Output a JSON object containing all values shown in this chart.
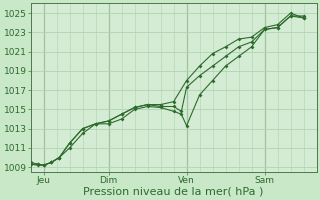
{
  "title": "",
  "xlabel": "Pression niveau de la mer( hPa )",
  "bg_color": "#c8e8c8",
  "plot_bg_color": "#d4ecd4",
  "grid_color": "#b0d4b0",
  "line_color": "#2d6a2d",
  "marker_color": "#2d6a2d",
  "ylim": [
    1008.5,
    1026.0
  ],
  "yticks": [
    1009,
    1011,
    1013,
    1015,
    1017,
    1019,
    1021,
    1023,
    1025
  ],
  "xtick_labels": [
    "Jeu",
    "Dim",
    "Ven",
    "Sam"
  ],
  "xtick_positions": [
    0.5,
    3.0,
    6.0,
    9.0
  ],
  "xlim": [
    0,
    11.0
  ],
  "series1_x": [
    0.0,
    0.3,
    0.5,
    0.8,
    1.1,
    1.5,
    2.0,
    2.5,
    3.0,
    3.5,
    4.0,
    4.5,
    5.0,
    5.5,
    5.8,
    6.0,
    6.5,
    7.0,
    7.5,
    8.0,
    8.5,
    9.0,
    9.5,
    10.0,
    10.5
  ],
  "series1_y": [
    1009.5,
    1009.3,
    1009.2,
    1009.5,
    1010.0,
    1011.0,
    1012.5,
    1013.5,
    1013.5,
    1014.0,
    1015.0,
    1015.3,
    1015.2,
    1014.8,
    1014.5,
    1013.3,
    1016.5,
    1018.0,
    1019.5,
    1020.5,
    1021.5,
    1023.3,
    1023.5,
    1024.7,
    1024.7
  ],
  "series2_x": [
    0.0,
    0.3,
    0.5,
    0.8,
    1.1,
    1.5,
    2.0,
    2.5,
    3.0,
    3.5,
    4.0,
    4.5,
    5.0,
    5.5,
    5.8,
    6.0,
    6.5,
    7.0,
    7.5,
    8.0,
    8.5,
    9.0,
    9.5,
    10.0,
    10.5
  ],
  "series2_y": [
    1009.3,
    1009.3,
    1009.2,
    1009.5,
    1010.0,
    1011.5,
    1013.0,
    1013.5,
    1013.8,
    1014.5,
    1015.2,
    1015.5,
    1015.3,
    1015.3,
    1014.8,
    1017.3,
    1018.5,
    1019.5,
    1020.5,
    1021.5,
    1022.0,
    1023.3,
    1023.5,
    1024.7,
    1024.5
  ],
  "series3_x": [
    0.0,
    0.3,
    0.5,
    0.8,
    1.1,
    1.5,
    2.0,
    2.5,
    3.0,
    3.5,
    4.0,
    4.5,
    5.0,
    5.5,
    6.0,
    6.5,
    7.0,
    7.5,
    8.0,
    8.5,
    9.0,
    9.5,
    10.0,
    10.5
  ],
  "series3_y": [
    1009.3,
    1009.2,
    1009.2,
    1009.5,
    1010.0,
    1011.5,
    1013.0,
    1013.5,
    1013.8,
    1014.5,
    1015.2,
    1015.5,
    1015.5,
    1015.8,
    1018.0,
    1019.5,
    1020.8,
    1021.5,
    1022.3,
    1022.5,
    1023.5,
    1023.8,
    1025.0,
    1024.5
  ],
  "vline_color": "#4a7a4a",
  "font_color": "#2d6a2d",
  "xlabel_fontsize": 8,
  "tick_fontsize": 6.5
}
